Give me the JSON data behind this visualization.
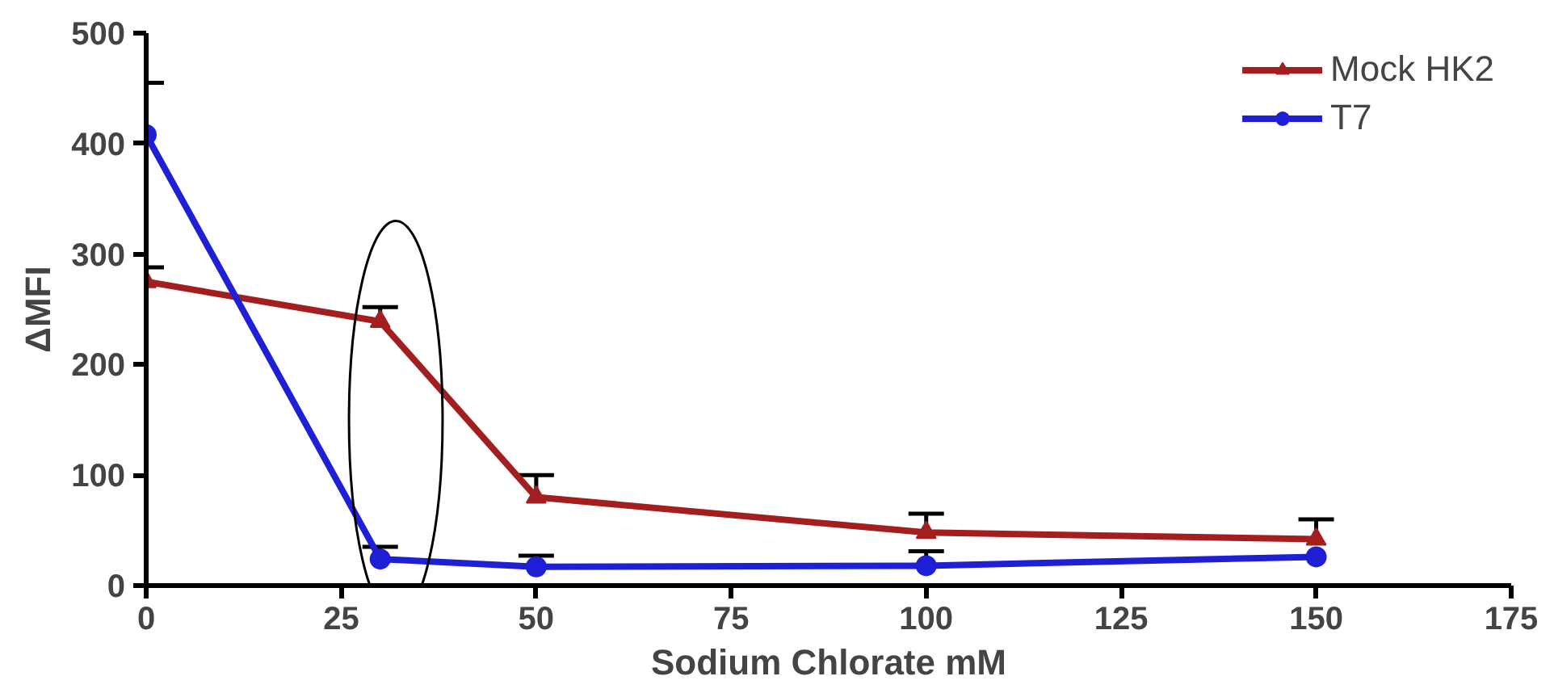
{
  "chart_data": {
    "type": "line",
    "xlabel": "Sodium Chlorate mM",
    "ylabel": "ΔMFI",
    "x": [
      0,
      30,
      50,
      100,
      150
    ],
    "series": [
      {
        "name": "Mock HK2",
        "color": "#a31f1f",
        "marker": "triangle",
        "values": [
          275,
          239,
          80,
          48,
          42
        ],
        "errors": [
          [
            275,
            288
          ],
          [
            239,
            252
          ],
          [
            80,
            100
          ],
          [
            48,
            65
          ],
          [
            42,
            60
          ]
        ]
      },
      {
        "name": "T7",
        "color": "#1f1fd6",
        "marker": "circle",
        "values": [
          408,
          24,
          17,
          18,
          26
        ],
        "errors": [
          [
            408,
            455
          ],
          [
            24,
            35
          ],
          [
            17,
            27
          ],
          [
            18,
            31
          ],
          null
        ]
      }
    ],
    "xlim": [
      0,
      175
    ],
    "xticks": [
      0,
      25,
      50,
      75,
      100,
      125,
      150,
      175
    ],
    "ylim": [
      0,
      500
    ],
    "yticks": [
      0,
      100,
      200,
      300,
      400,
      500
    ],
    "grid": false,
    "legend": "top right"
  }
}
